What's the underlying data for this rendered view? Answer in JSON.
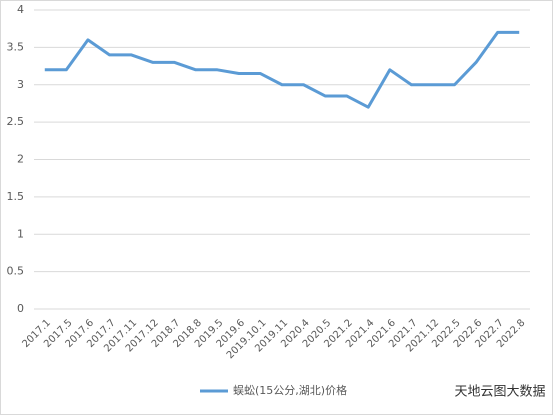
{
  "chart_data": {
    "type": "line",
    "categories": [
      "2017.1",
      "2017.5",
      "2017.6",
      "2017.7",
      "2017.11",
      "2017.12",
      "2018.7",
      "2018.8",
      "2019.5",
      "2019.6",
      "2019.10.1",
      "2019.11",
      "2020.4",
      "2020.5",
      "2021.2",
      "2021.4",
      "2021.6",
      "2021.7",
      "2021.12",
      "2022.5",
      "2022.6",
      "2022.7",
      "2022.8"
    ],
    "series": [
      {
        "name": "蜈蚣(15公分,湖北)价格",
        "color": "#5b9bd5",
        "values": [
          3.2,
          3.2,
          3.6,
          3.4,
          3.4,
          3.3,
          3.3,
          3.2,
          3.2,
          3.15,
          3.15,
          3.0,
          3.0,
          2.85,
          2.85,
          2.7,
          3.2,
          3.0,
          3.0,
          3.0,
          3.3,
          3.7,
          3.7
        ]
      }
    ],
    "ylim": [
      0,
      4
    ],
    "yticks": [
      0,
      0.5,
      1,
      1.5,
      2,
      2.5,
      3,
      3.5,
      4
    ],
    "grid": true,
    "watermark": "天地云图大数据"
  }
}
